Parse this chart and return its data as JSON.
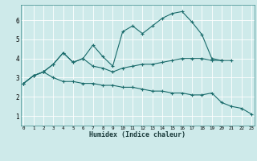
{
  "xlabel": "Humidex (Indice chaleur)",
  "bg_color": "#ceeaea",
  "line_color": "#1a6b6b",
  "grid_color": "#ffffff",
  "x_ticks": [
    0,
    1,
    2,
    3,
    4,
    5,
    6,
    7,
    8,
    9,
    10,
    11,
    12,
    13,
    14,
    15,
    16,
    17,
    18,
    19,
    20,
    21,
    22,
    23
  ],
  "y_ticks": [
    1,
    2,
    3,
    4,
    5,
    6
  ],
  "ylim": [
    0.5,
    6.8
  ],
  "xlim": [
    -0.3,
    23.3
  ],
  "line1_x": [
    0,
    1,
    2,
    3,
    4,
    5,
    6,
    7,
    8,
    9,
    10,
    11,
    12,
    13,
    14,
    15,
    16,
    17,
    18,
    19,
    20,
    21
  ],
  "line1_y": [
    2.7,
    3.1,
    3.3,
    3.7,
    4.3,
    3.8,
    4.0,
    4.7,
    4.1,
    3.6,
    5.4,
    5.7,
    5.3,
    5.7,
    6.1,
    6.35,
    6.45,
    5.9,
    5.25,
    4.0,
    3.9,
    3.9
  ],
  "line2_x": [
    0,
    1,
    2,
    3,
    4,
    5,
    6,
    7,
    8,
    9,
    10,
    11,
    12,
    13,
    14,
    15,
    16,
    17,
    18,
    19,
    20
  ],
  "line2_y": [
    2.7,
    3.1,
    3.3,
    3.7,
    4.3,
    3.8,
    4.0,
    3.6,
    3.5,
    3.3,
    3.5,
    3.6,
    3.7,
    3.7,
    3.8,
    3.9,
    4.0,
    4.0,
    4.0,
    3.9,
    3.9
  ],
  "line3_x": [
    0,
    1,
    2,
    3,
    4,
    5,
    6,
    7,
    8,
    9,
    10,
    11,
    12,
    13,
    14,
    15,
    16,
    17,
    18,
    19,
    20,
    21,
    22,
    23
  ],
  "line3_y": [
    2.7,
    3.1,
    3.3,
    3.0,
    2.8,
    2.8,
    2.7,
    2.7,
    2.6,
    2.6,
    2.5,
    2.5,
    2.4,
    2.3,
    2.3,
    2.2,
    2.2,
    2.1,
    2.1,
    2.2,
    1.7,
    1.5,
    1.4,
    1.1
  ]
}
